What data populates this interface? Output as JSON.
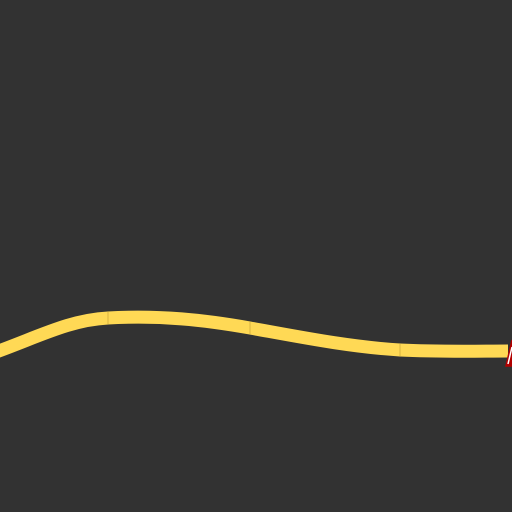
{
  "map": {
    "background_color": "#323232",
    "road": {
      "color": "#ffd955",
      "segment_seam_color": "#d8b23e"
    },
    "marker": {
      "icon": "red-route-marker-icon",
      "fill_color": "#b10000",
      "outline_color": "#ffffff"
    }
  }
}
